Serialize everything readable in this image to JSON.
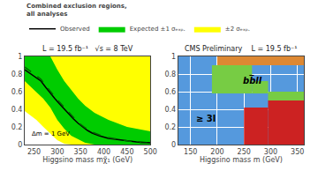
{
  "chart_data": [
    {
      "type": "line",
      "title": "L = 19.5 fb⁻¹   √s = 8 TeV",
      "x_label": "Higgsino mass mχ̃₁ (GeV)",
      "xlim": [
        230,
        500
      ],
      "ylim": [
        0,
        1
      ],
      "xticks": [
        250,
        300,
        350,
        400,
        450,
        500
      ],
      "yticks": [
        0,
        0.2,
        0.4,
        0.6,
        0.8,
        1
      ],
      "grid": false,
      "legend_title": "Combined exclusion regions,\nall analyses",
      "annotations": [
        "Δm = 1 GeV"
      ],
      "bands": [
        {
          "name": "±2 σₑₓₚ.",
          "color": "#ffff00",
          "x": [
            230,
            255,
            270,
            285,
            300,
            315,
            330,
            345,
            360,
            380,
            410,
            450,
            500
          ],
          "lower": [
            0.38,
            0.28,
            0.2,
            0.12,
            0.05,
            0.01,
            0.0,
            0.0,
            0.0,
            0.0,
            0.0,
            0.0,
            0.0
          ],
          "upper": [
            1.0,
            1.0,
            1.0,
            1.0,
            1.0,
            1.0,
            1.0,
            1.0,
            1.0,
            1.0,
            1.0,
            1.0,
            1.0
          ]
        },
        {
          "name": "Expected ±1 σₑₓₚ.",
          "color": "#00cc00",
          "x": [
            230,
            255,
            270,
            285,
            300,
            315,
            330,
            345,
            360,
            380,
            410,
            450,
            500
          ],
          "lower": [
            0.72,
            0.6,
            0.52,
            0.42,
            0.28,
            0.18,
            0.1,
            0.06,
            0.02,
            0.0,
            0.0,
            0.0,
            0.0
          ],
          "upper": [
            1.0,
            1.0,
            1.0,
            1.0,
            0.85,
            0.72,
            0.62,
            0.52,
            0.44,
            0.36,
            0.28,
            0.2,
            0.15
          ]
        }
      ],
      "series": [
        {
          "name": "Observed",
          "color": "#000000",
          "line_style": "solid",
          "x": [
            230,
            250,
            265,
            275,
            285,
            295,
            305,
            315,
            325,
            335,
            345,
            355,
            365,
            375,
            390,
            410,
            440,
            470,
            500
          ],
          "values": [
            0.85,
            0.78,
            0.72,
            0.65,
            0.58,
            0.52,
            0.46,
            0.4,
            0.34,
            0.29,
            0.24,
            0.2,
            0.16,
            0.13,
            0.1,
            0.07,
            0.05,
            0.03,
            0.02
          ]
        },
        {
          "color": "#006600",
          "line_style": "dashed",
          "x": [
            230,
            250,
            265,
            275,
            285,
            295,
            305,
            315,
            325,
            335,
            345,
            360,
            375,
            400,
            440,
            480,
            500
          ],
          "values": [
            0.88,
            0.8,
            0.74,
            0.67,
            0.6,
            0.54,
            0.48,
            0.42,
            0.36,
            0.3,
            0.25,
            0.19,
            0.14,
            0.09,
            0.05,
            0.02,
            0.015
          ]
        }
      ]
    },
    {
      "type": "regions",
      "title": "CMS Preliminary    L = 19.5 fb⁻¹",
      "x_label": "Higgsino mass m (GeV)",
      "xlim": [
        127,
        362
      ],
      "ylim": [
        0,
        1
      ],
      "xticks": [
        150,
        200,
        250,
        300,
        350
      ],
      "yticks": [
        0,
        0.2,
        0.4,
        0.6,
        0.8,
        1
      ],
      "grid": true,
      "series": [
        {
          "name": "≥ 3l",
          "color": "#5599dd"
        },
        {
          "color": "#dd8833",
          "rects": [
            [
              200,
              0.9,
              162,
              0.1
            ]
          ]
        },
        {
          "name": "bb̅ll",
          "color": "#77cc44",
          "rects": [
            [
              190,
              0.58,
              75,
              0.32
            ],
            [
              265,
              0.58,
              30,
              0.14
            ],
            [
              295,
              0.5,
              67,
              0.1
            ]
          ]
        },
        {
          "color": "#cc2222",
          "rects": [
            [
              250,
              0.0,
              45,
              0.14
            ],
            [
              250,
              0.14,
              45,
              0.28
            ],
            [
              295,
              0.0,
              67,
              0.5
            ]
          ]
        }
      ]
    }
  ]
}
